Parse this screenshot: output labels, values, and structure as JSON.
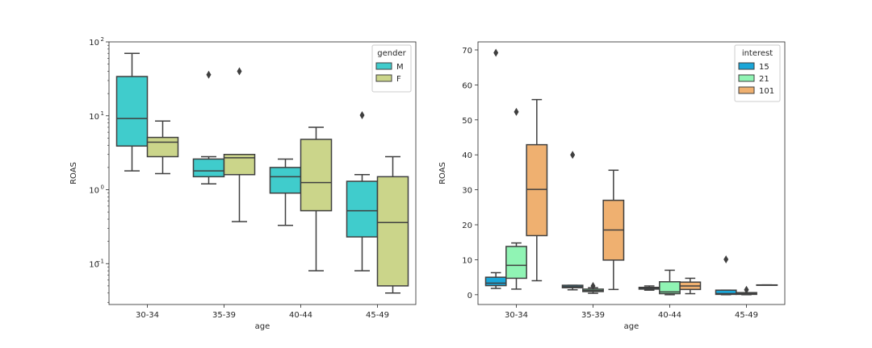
{
  "chart_data": [
    {
      "type": "boxplot",
      "xlabel": "age",
      "ylabel": "ROAS",
      "yscale": "log",
      "ylim": [
        0.028,
        100
      ],
      "categories": [
        "30-34",
        "35-39",
        "40-44",
        "45-49"
      ],
      "y_ticks": [
        {
          "value": 0.1,
          "base": "10",
          "exp": "−1"
        },
        {
          "value": 1,
          "base": "10",
          "exp": "0"
        },
        {
          "value": 10,
          "base": "10",
          "exp": "1"
        },
        {
          "value": 100,
          "base": "10",
          "exp": "2"
        }
      ],
      "legend": {
        "title": "gender",
        "position": "upper right"
      },
      "series": [
        {
          "name": "M",
          "color": "#40cccc",
          "boxes": [
            {
              "whislo": 1.8,
              "q1": 3.9,
              "med": 9.2,
              "q3": 34,
              "whishi": 70,
              "fliers": []
            },
            {
              "whislo": 1.2,
              "q1": 1.5,
              "med": 1.8,
              "q3": 2.6,
              "whishi": 2.8,
              "fliers": [
                36
              ]
            },
            {
              "whislo": 0.33,
              "q1": 0.9,
              "med": 1.5,
              "q3": 2.0,
              "whishi": 2.6,
              "fliers": []
            },
            {
              "whislo": 0.08,
              "q1": 0.23,
              "med": 0.52,
              "q3": 1.3,
              "whishi": 1.6,
              "fliers": [
                10.2
              ]
            }
          ]
        },
        {
          "name": "F",
          "color": "#cbd58a",
          "boxes": [
            {
              "whislo": 1.65,
              "q1": 2.8,
              "med": 4.4,
              "q3": 5.1,
              "whishi": 8.5,
              "fliers": []
            },
            {
              "whislo": 0.37,
              "q1": 1.6,
              "med": 2.7,
              "q3": 3.0,
              "whishi": 3.0,
              "fliers": [
                40
              ]
            },
            {
              "whislo": 0.08,
              "q1": 0.52,
              "med": 1.25,
              "q3": 4.8,
              "whishi": 7.0,
              "fliers": []
            },
            {
              "whislo": 0.04,
              "q1": 0.05,
              "med": 0.36,
              "q3": 1.5,
              "whishi": 2.8,
              "fliers": []
            }
          ]
        }
      ]
    },
    {
      "type": "boxplot",
      "xlabel": "age",
      "ylabel": "ROAS",
      "yscale": "linear",
      "ylim": [
        -2.8,
        72.3
      ],
      "categories": [
        "30-34",
        "35-39",
        "40-44",
        "45-49"
      ],
      "y_ticks": [
        0,
        10,
        20,
        30,
        40,
        50,
        60,
        70
      ],
      "legend": {
        "title": "interest",
        "position": "upper right"
      },
      "series": [
        {
          "name": "15",
          "color": "#1aa6d8",
          "boxes": [
            {
              "whislo": 1.8,
              "q1": 2.6,
              "med": 3.3,
              "q3": 5.0,
              "whishi": 6.3,
              "fliers": [
                69.2
              ]
            },
            {
              "whislo": 1.4,
              "q1": 2.0,
              "med": 2.3,
              "q3": 2.7,
              "whishi": 2.7,
              "fliers": [
                40
              ]
            },
            {
              "whislo": 1.3,
              "q1": 1.6,
              "med": 1.9,
              "q3": 2.1,
              "whishi": 2.5,
              "fliers": []
            },
            {
              "whislo": 0,
              "q1": 0.1,
              "med": 0.3,
              "q3": 1.3,
              "whishi": 1.3,
              "fliers": [
                10.1
              ]
            }
          ]
        },
        {
          "name": "21",
          "color": "#90f4b4",
          "boxes": [
            {
              "whislo": 1.6,
              "q1": 4.7,
              "med": 8.4,
              "q3": 13.8,
              "whishi": 14.8,
              "fliers": [
                52.3
              ]
            },
            {
              "whislo": 0.4,
              "q1": 0.9,
              "med": 1.2,
              "q3": 1.6,
              "whishi": 2.0,
              "fliers": [
                2.5
              ]
            },
            {
              "whislo": 0.0,
              "q1": 0.3,
              "med": 0.8,
              "q3": 3.7,
              "whishi": 7.0,
              "fliers": []
            },
            {
              "whislo": 0.0,
              "q1": 0.1,
              "med": 0.3,
              "q3": 0.6,
              "whishi": 0.6,
              "fliers": [
                1.4
              ]
            }
          ]
        },
        {
          "name": "101",
          "color": "#efb070",
          "boxes": [
            {
              "whislo": 4.0,
              "q1": 16.9,
              "med": 30.1,
              "q3": 42.9,
              "whishi": 55.8,
              "fliers": []
            },
            {
              "whislo": 1.5,
              "q1": 9.9,
              "med": 18.5,
              "q3": 27.0,
              "whishi": 35.6,
              "fliers": []
            },
            {
              "whislo": 0.3,
              "q1": 1.5,
              "med": 2.5,
              "q3": 3.6,
              "whishi": 4.7,
              "fliers": []
            },
            {
              "whislo": 2.8,
              "q1": 2.8,
              "med": 2.8,
              "q3": 2.8,
              "whishi": 2.8,
              "fliers": []
            }
          ]
        }
      ]
    }
  ]
}
